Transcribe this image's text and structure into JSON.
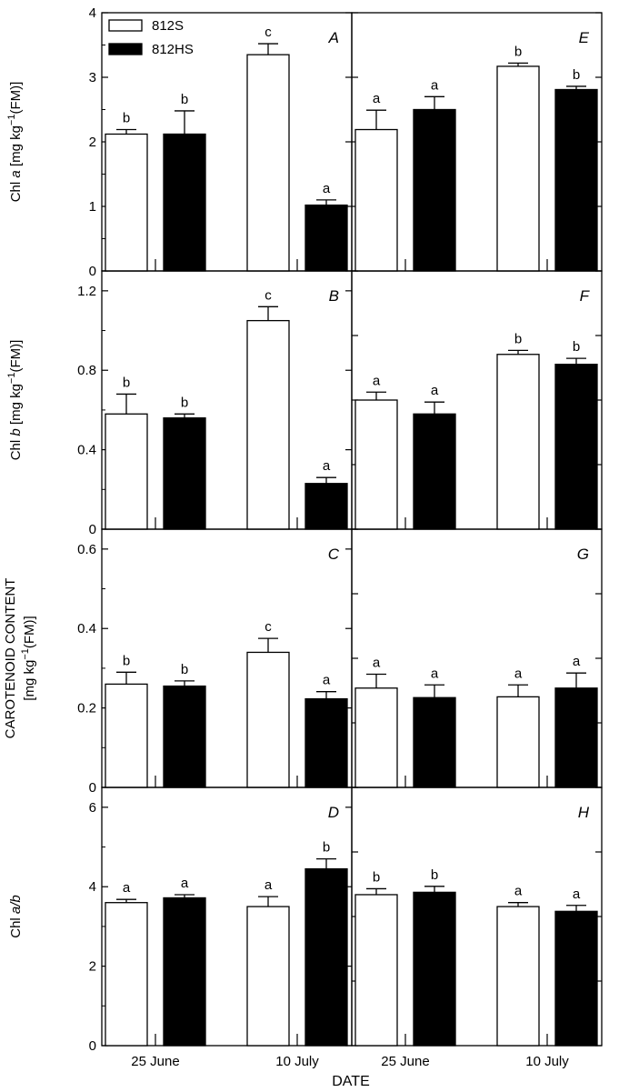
{
  "figure": {
    "x_title": "DATE",
    "legend": [
      {
        "label": "812S",
        "fill": "#ffffff"
      },
      {
        "label": "812HS",
        "fill": "#000000"
      }
    ]
  },
  "colors": {
    "axis": "#000000",
    "s_fill": "#ffffff",
    "hs_fill": "#000000"
  },
  "chart_data": [
    {
      "type": "bar",
      "panel_label": "A",
      "ylabel_parts": [
        "Chl ",
        "a",
        " [mg kg",
        "−1",
        "(FM)]"
      ],
      "categories": [
        "25 June",
        "10 July"
      ],
      "ylim": [
        0,
        4
      ],
      "ticks": [
        "0",
        "1",
        "2",
        "3",
        "4"
      ],
      "series": [
        {
          "name": "812S",
          "values": [
            2.12,
            3.35
          ],
          "errors": [
            0.07,
            0.17
          ],
          "letters": [
            "b",
            "c"
          ]
        },
        {
          "name": "812HS",
          "values": [
            2.12,
            1.02
          ],
          "errors": [
            0.36,
            0.08
          ],
          "letters": [
            "b",
            "a"
          ]
        }
      ]
    },
    {
      "type": "bar",
      "panel_label": "E",
      "ylabel_parts": [],
      "categories": [
        "25 June",
        "10 July"
      ],
      "ylim": [
        0,
        4
      ],
      "ticks": [],
      "series": [
        {
          "name": "812S",
          "values": [
            2.19,
            3.17
          ],
          "errors": [
            0.3,
            0.05
          ],
          "letters": [
            "a",
            "b"
          ]
        },
        {
          "name": "812HS",
          "values": [
            2.5,
            2.81
          ],
          "errors": [
            0.2,
            0.05
          ],
          "letters": [
            "a",
            "b"
          ]
        }
      ]
    },
    {
      "type": "bar",
      "panel_label": "B",
      "ylabel_parts": [
        "Chl ",
        "b",
        " [mg kg",
        "−1",
        "(FM)]"
      ],
      "categories": [
        "25 June",
        "10 July"
      ],
      "ylim": [
        0,
        1.3
      ],
      "ticks": [
        "0",
        "0.4",
        "0.8",
        "1.2"
      ],
      "series": [
        {
          "name": "812S",
          "values": [
            0.58,
            1.05
          ],
          "errors": [
            0.1,
            0.07
          ],
          "letters": [
            "b",
            "c"
          ]
        },
        {
          "name": "812HS",
          "values": [
            0.56,
            0.23
          ],
          "errors": [
            0.02,
            0.03
          ],
          "letters": [
            "b",
            "a"
          ]
        }
      ]
    },
    {
      "type": "bar",
      "panel_label": "F",
      "ylabel_parts": [],
      "categories": [
        "25 June",
        "10 July"
      ],
      "ylim": [
        0,
        1.3
      ],
      "ticks": [],
      "series": [
        {
          "name": "812S",
          "values": [
            0.65,
            0.88
          ],
          "errors": [
            0.04,
            0.02
          ],
          "letters": [
            "a",
            "b"
          ]
        },
        {
          "name": "812HS",
          "values": [
            0.58,
            0.83
          ],
          "errors": [
            0.06,
            0.03
          ],
          "letters": [
            "a",
            "b"
          ]
        }
      ]
    },
    {
      "type": "bar",
      "panel_label": "C",
      "ylabel_parts": [
        "CAROTENOID CONTENT",
        "[mg kg",
        "−1",
        "(FM)]"
      ],
      "categories": [
        "25 June",
        "10 July"
      ],
      "ylim": [
        0,
        0.65
      ],
      "ticks": [
        "0",
        "0.2",
        "0.4",
        "0.6"
      ],
      "series": [
        {
          "name": "812S",
          "values": [
            0.26,
            0.34
          ],
          "errors": [
            0.03,
            0.035
          ],
          "letters": [
            "b",
            "c"
          ]
        },
        {
          "name": "812HS",
          "values": [
            0.255,
            0.223
          ],
          "errors": [
            0.013,
            0.018
          ],
          "letters": [
            "b",
            "a"
          ]
        }
      ]
    },
    {
      "type": "bar",
      "panel_label": "G",
      "ylabel_parts": [],
      "categories": [
        "25 June",
        "10 July"
      ],
      "ylim": [
        0,
        0.65
      ],
      "ticks": [],
      "series": [
        {
          "name": "812S",
          "values": [
            0.25,
            0.228
          ],
          "errors": [
            0.035,
            0.03
          ],
          "letters": [
            "a",
            "a"
          ]
        },
        {
          "name": "812HS",
          "values": [
            0.226,
            0.25
          ],
          "errors": [
            0.032,
            0.038
          ],
          "letters": [
            "a",
            "a"
          ]
        }
      ]
    },
    {
      "type": "bar",
      "panel_label": "D",
      "ylabel_parts": [
        "Chl ",
        "a/b"
      ],
      "categories": [
        "25 June",
        "10 July"
      ],
      "ylim": [
        0,
        6.5
      ],
      "ticks": [
        "0",
        "2",
        "4",
        "6"
      ],
      "series": [
        {
          "name": "812S",
          "values": [
            3.6,
            3.5
          ],
          "errors": [
            0.08,
            0.25
          ],
          "letters": [
            "a",
            "a"
          ]
        },
        {
          "name": "812HS",
          "values": [
            3.72,
            4.45
          ],
          "errors": [
            0.08,
            0.25
          ],
          "letters": [
            "a",
            "b"
          ]
        }
      ]
    },
    {
      "type": "bar",
      "panel_label": "H",
      "ylabel_parts": [],
      "categories": [
        "25 June",
        "10 July"
      ],
      "ylim": [
        0,
        6.5
      ],
      "ticks": [],
      "series": [
        {
          "name": "812S",
          "values": [
            3.8,
            3.5
          ],
          "errors": [
            0.15,
            0.1
          ],
          "letters": [
            "b",
            "a"
          ]
        },
        {
          "name": "812HS",
          "values": [
            3.86,
            3.38
          ],
          "errors": [
            0.15,
            0.15
          ],
          "letters": [
            "b",
            "a"
          ]
        }
      ]
    }
  ]
}
